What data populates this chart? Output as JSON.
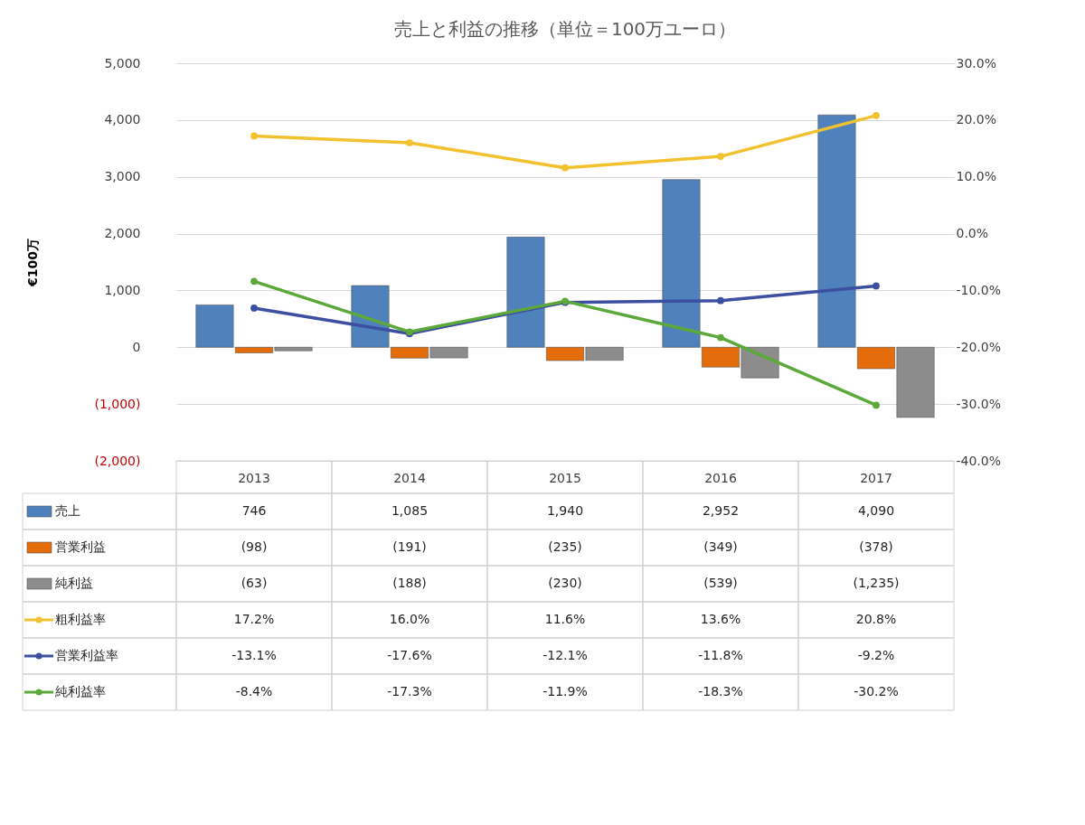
{
  "chart_data": {
    "type": "bar",
    "title": "売上と利益の推移（単位＝100万ユーロ）",
    "ylabel": "€100万",
    "categories": [
      "2013",
      "2014",
      "2015",
      "2016",
      "2017"
    ],
    "series": [
      {
        "name": "売上",
        "type": "bar",
        "color": "#4f81bd",
        "values": [
          746,
          1085,
          1940,
          2952,
          4090
        ],
        "value_labels": [
          "746",
          "1,085",
          "1,940",
          "2,952",
          "4,090"
        ]
      },
      {
        "name": "営業利益",
        "type": "bar",
        "color": "#e46c0a",
        "values": [
          -98,
          -191,
          -235,
          -349,
          -378
        ],
        "value_labels": [
          "(98)",
          "(191)",
          "(235)",
          "(349)",
          "(378)"
        ]
      },
      {
        "name": "純利益",
        "type": "bar",
        "color": "#8c8c8c",
        "values": [
          -63,
          -188,
          -230,
          -539,
          -1235
        ],
        "value_labels": [
          "(63)",
          "(188)",
          "(230)",
          "(539)",
          "(1,235)"
        ]
      },
      {
        "name": "粗利益率",
        "type": "line",
        "axis": "y2",
        "color": "#f2c12e",
        "values": [
          17.2,
          16.0,
          11.6,
          13.6,
          20.8
        ],
        "value_labels": [
          "17.2%",
          "16.0%",
          "11.6%",
          "13.6%",
          "20.8%"
        ]
      },
      {
        "name": "営業利益率",
        "type": "line",
        "axis": "y2",
        "color": "#3c4fa0",
        "values": [
          -13.1,
          -17.6,
          -12.1,
          -11.8,
          -9.2
        ],
        "value_labels": [
          "-13.1%",
          "-17.6%",
          "-12.1%",
          "-11.8%",
          "-9.2%"
        ]
      },
      {
        "name": "純利益率",
        "type": "line",
        "axis": "y2",
        "color": "#5da83a",
        "values": [
          -8.4,
          -17.3,
          -11.9,
          -18.3,
          -30.2
        ],
        "value_labels": [
          "-8.4%",
          "-17.3%",
          "-11.9%",
          "-18.3%",
          "-30.2%"
        ]
      }
    ],
    "ylim": [
      -2000,
      5000
    ],
    "yticks": [
      {
        "value": -2000,
        "label": "(2,000)"
      },
      {
        "value": -1000,
        "label": "(1,000)"
      },
      0,
      {
        "value": 1000,
        "label": "1,000"
      },
      {
        "value": 2000,
        "label": "2,000"
      },
      {
        "value": 3000,
        "label": "3,000"
      },
      {
        "value": 4000,
        "label": "4,000"
      },
      {
        "value": 5000,
        "label": "5,000"
      }
    ],
    "y2lim": [
      -40,
      30
    ],
    "y2ticks": [
      {
        "value": -40,
        "label": "-40.0%"
      },
      {
        "value": -30,
        "label": "-30.0%"
      },
      {
        "value": -20,
        "label": "-20.0%"
      },
      {
        "value": -10,
        "label": "-10.0%"
      },
      {
        "value": 0,
        "label": "0.0%"
      },
      {
        "value": 10,
        "label": "10.0%"
      },
      {
        "value": 20,
        "label": "20.0%"
      },
      {
        "value": 30,
        "label": "30.0%"
      }
    ],
    "grid": "y",
    "legend": "bottom",
    "marker": "circle",
    "line_style": "solid"
  }
}
